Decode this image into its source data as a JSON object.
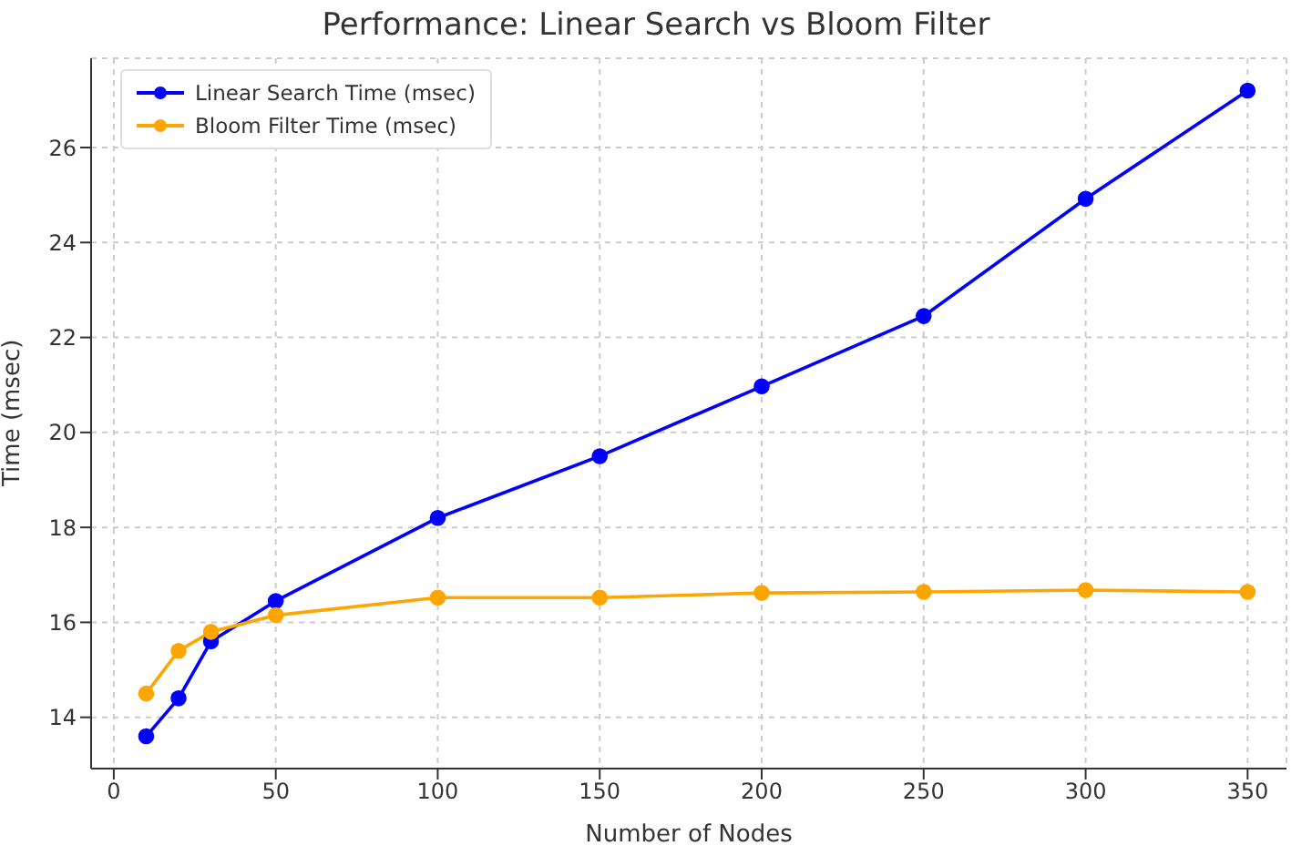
{
  "chart_data": {
    "type": "line",
    "title": "Performance: Linear Search vs Bloom Filter",
    "xlabel": "Number of Nodes",
    "ylabel": "Time (msec)",
    "x": [
      10,
      20,
      30,
      50,
      100,
      150,
      200,
      250,
      300,
      350
    ],
    "series": [
      {
        "name": "Linear Search Time (msec)",
        "color": "#0000ff",
        "values": [
          13.6,
          14.4,
          15.6,
          16.45,
          18.2,
          19.5,
          20.97,
          22.45,
          24.92,
          27.2
        ]
      },
      {
        "name": "Bloom Filter Time (msec)",
        "color": "#ffa500",
        "values": [
          14.5,
          15.4,
          15.8,
          16.15,
          16.52,
          16.52,
          16.62,
          16.64,
          16.68,
          16.64
        ]
      }
    ],
    "xlim": [
      -7,
      362
    ],
    "xticks": [
      0,
      50,
      100,
      150,
      200,
      250,
      300,
      350
    ],
    "ylim": [
      12.92,
      27.88
    ],
    "yticks": [
      14,
      16,
      18,
      20,
      22,
      24,
      26
    ],
    "grid": true,
    "legend": "top left",
    "marker": "circle",
    "line_style": "solid"
  }
}
